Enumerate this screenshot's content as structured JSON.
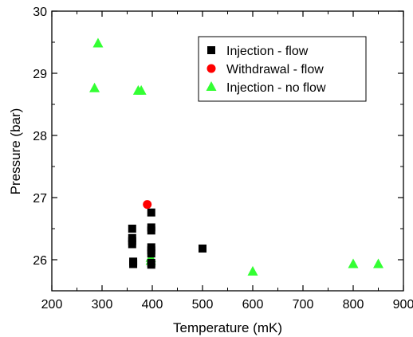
{
  "chart_data": {
    "type": "scatter",
    "title": "",
    "xlabel": "Temperature (mK)",
    "ylabel": "Pressure (bar)",
    "xlim": [
      200,
      900
    ],
    "ylim": [
      25.5,
      30
    ],
    "x_ticks": [
      200,
      300,
      400,
      500,
      600,
      700,
      800,
      900
    ],
    "y_ticks": [
      26,
      27,
      28,
      29,
      30
    ],
    "grid": false,
    "legend_position": "top-right",
    "series": [
      {
        "name": "Injection - flow",
        "marker": "square",
        "color": "#000000",
        "points": [
          {
            "x": 360,
            "y": 26.5
          },
          {
            "x": 360,
            "y": 26.35
          },
          {
            "x": 360,
            "y": 26.3
          },
          {
            "x": 360,
            "y": 26.25
          },
          {
            "x": 362,
            "y": 25.97
          },
          {
            "x": 362,
            "y": 25.93
          },
          {
            "x": 398,
            "y": 26.76
          },
          {
            "x": 398,
            "y": 26.52
          },
          {
            "x": 398,
            "y": 26.47
          },
          {
            "x": 398,
            "y": 26.2
          },
          {
            "x": 398,
            "y": 26.15
          },
          {
            "x": 398,
            "y": 26.1
          },
          {
            "x": 398,
            "y": 25.95
          },
          {
            "x": 398,
            "y": 25.92
          },
          {
            "x": 500,
            "y": 26.18
          }
        ]
      },
      {
        "name": "Withdrawal - flow",
        "marker": "circle",
        "color": "#ff0000",
        "points": [
          {
            "x": 390,
            "y": 26.89
          }
        ]
      },
      {
        "name": "Injection - no flow",
        "marker": "triangle",
        "color": "#33ff33",
        "points": [
          {
            "x": 292,
            "y": 29.48
          },
          {
            "x": 285,
            "y": 28.76
          },
          {
            "x": 372,
            "y": 28.72
          },
          {
            "x": 378,
            "y": 28.72
          },
          {
            "x": 397,
            "y": 26.03
          },
          {
            "x": 397,
            "y": 25.98
          },
          {
            "x": 600,
            "y": 25.81
          },
          {
            "x": 800,
            "y": 25.93
          },
          {
            "x": 850,
            "y": 25.93
          }
        ]
      }
    ]
  }
}
